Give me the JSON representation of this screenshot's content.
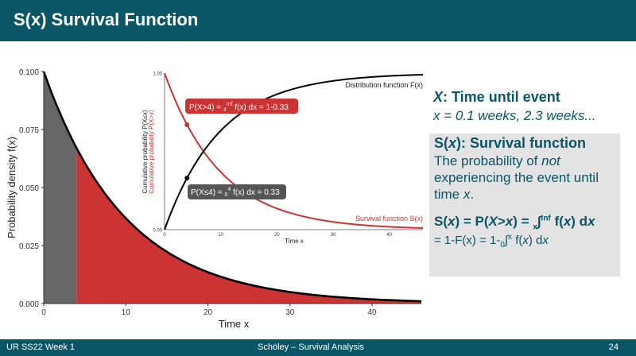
{
  "header": {
    "title": "S(x) Survival Function"
  },
  "footer": {
    "left": "UR SS22 Week 1",
    "center": "Schöley – Survival Analysis",
    "page": "24"
  },
  "colors": {
    "brand": "#0a5566",
    "red": "#cc3333",
    "gray": "#666666",
    "box": "#e3e3e3"
  },
  "chart_data": [
    {
      "type": "area",
      "ylabel": "Probability density f(x)",
      "xlabel": "Time x",
      "xlim": [
        0,
        46
      ],
      "ylim": [
        0,
        0.1
      ],
      "x_ticks": [
        "0",
        "10",
        "20",
        "30",
        "40"
      ],
      "y_ticks": [
        "0.000",
        "0.025",
        "0.050",
        "0.075",
        "0.100"
      ],
      "series": [
        {
          "values": {
            "rate": 0.1,
            "x_from": 0,
            "x_to": 46
          }
        }
      ],
      "shaded_regions": [
        {
          "x_from": 0,
          "x_to": 4
        },
        {
          "x_from": 4,
          "x_to": 46
        }
      ]
    },
    {
      "type": "line",
      "ylabel_top": "Cumulative probability P(X≤x)",
      "ylabel_bottom": "Cumulative probability P(X>x)",
      "xlabel": "Time x",
      "xlim": [
        0,
        46
      ],
      "ylim": [
        0,
        1
      ],
      "x_ticks": [
        "0",
        "10",
        "20",
        "30",
        "40"
      ],
      "y_ticks": [
        "0.00",
        "0.25",
        "0.50",
        "0.75",
        "1.00"
      ],
      "series": [
        {
          "name": "Distribution function F(x)",
          "rate": 0.1
        },
        {
          "name": "Survival function S(x)",
          "rate": 0.1
        }
      ],
      "annotations": [
        {
          "x": 4,
          "y": 0.67,
          "label_main": "P(X>4) = ",
          "label_sub": "4",
          "label_sup": "Inf",
          "label_rest": " f(x) dx = 1-0.33"
        },
        {
          "x": 4,
          "y": 0.33,
          "label_main": "P(X≤4) = ",
          "label_sub": "0",
          "label_sup": "4",
          "label_rest": " f(x) dx = 0.33"
        }
      ]
    }
  ],
  "explain": {
    "x_var": "X",
    "x_title_rest": ": Time until event",
    "x_values": "x = 0.1 weeks, 2.3 weeks...",
    "def_title_a": "S(",
    "def_title_x": "x",
    "def_title_b": "): Survival function",
    "def_text_a": "The probability of ",
    "def_text_not": "not",
    "def_text_b": " experiencing the event until time ",
    "def_text_x": "x",
    "def_text_c": ".",
    "f1_a": "S(",
    "f1_x1": "x",
    "f1_b": ") = P(",
    "f1_X": "X",
    "f1_gt": ">",
    "f1_x2": "x",
    "f1_c": ") = ",
    "f1_sub": "x",
    "f1_sup": "Inf",
    "f1_d": " f(",
    "f1_x3": "x",
    "f1_e": ") d",
    "f1_x4": "x",
    "f2_a": "= 1-F(x) = 1-",
    "f2_sub": "0",
    "f2_sup": "x",
    "f2_b": " f(",
    "f2_x": "x",
    "f2_c": ") d",
    "f2_x2": "x"
  }
}
